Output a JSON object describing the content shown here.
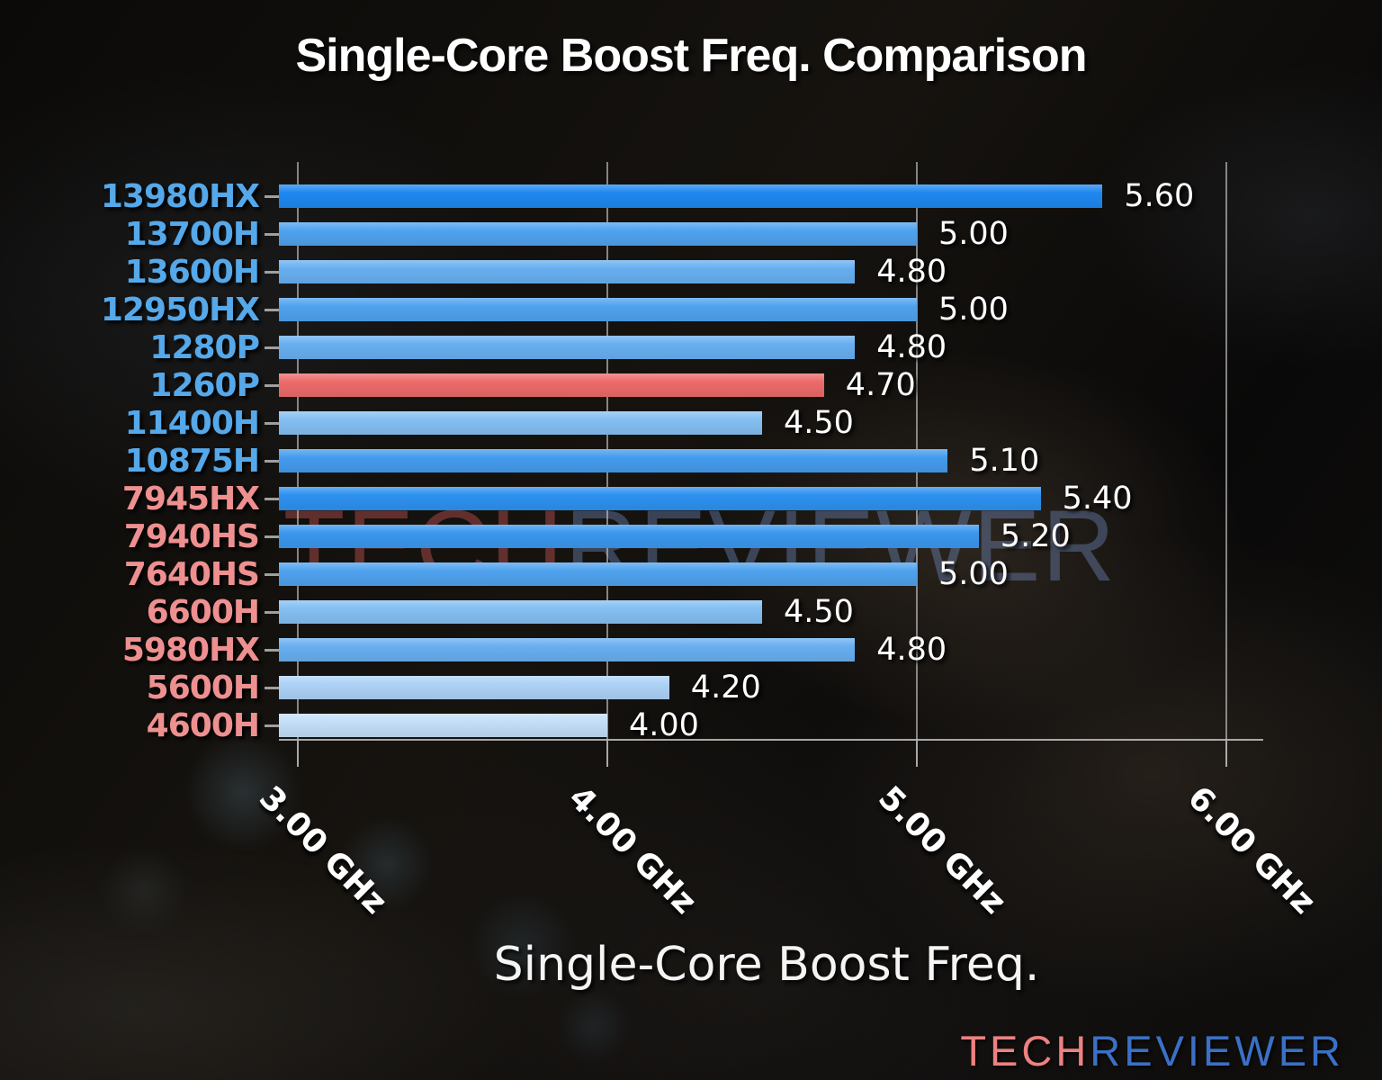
{
  "title": "Single-Core Boost Freq. Comparison",
  "watermark": {
    "tech": "TECH",
    "reviewer": "REVIEWER"
  },
  "logo": {
    "tech": "TECH",
    "reviewer": "REVIEWER"
  },
  "colors": {
    "intel_label": "#55a8e9",
    "amd_label": "#ee9090",
    "highlight_bar": "#ec6a6a",
    "logo_tech": "#ed8181",
    "logo_reviewer": "#3b70c6",
    "axis": "#c3c3c3",
    "value_text": "#ffffff"
  },
  "chart_data": {
    "type": "bar",
    "orientation": "horizontal",
    "title": "Single-Core Boost Freq. Comparison",
    "xlabel": "Single-Core Boost Freq.",
    "xlim": [
      2.94,
      6.11
    ],
    "grid": true,
    "legend": false,
    "x_ticks": [
      {
        "value": 3.0,
        "label": "3.00 GHz"
      },
      {
        "value": 4.0,
        "label": "4.00 GHz"
      },
      {
        "value": 5.0,
        "label": "5.00 GHz"
      },
      {
        "value": 6.0,
        "label": "6.00 GHz"
      }
    ],
    "bars": [
      {
        "category": "13980HX",
        "value": 5.6,
        "value_label": "5.60",
        "vendor": "intel",
        "highlight": false,
        "color": "#1e88f0"
      },
      {
        "category": "13700H",
        "value": 5.0,
        "value_label": "5.00",
        "vendor": "intel",
        "highlight": false,
        "color": "#4fa2ee"
      },
      {
        "category": "13600H",
        "value": 4.8,
        "value_label": "4.80",
        "vendor": "intel",
        "highlight": false,
        "color": "#68aff0"
      },
      {
        "category": "12950HX",
        "value": 5.0,
        "value_label": "5.00",
        "vendor": "intel",
        "highlight": false,
        "color": "#4fa2ee"
      },
      {
        "category": "1280P",
        "value": 4.8,
        "value_label": "4.80",
        "vendor": "intel",
        "highlight": false,
        "color": "#68aff0"
      },
      {
        "category": "1260P",
        "value": 4.7,
        "value_label": "4.70",
        "vendor": "intel",
        "highlight": true,
        "color": "#ec6a6a"
      },
      {
        "category": "11400H",
        "value": 4.5,
        "value_label": "4.50",
        "vendor": "intel",
        "highlight": false,
        "color": "#84bff2"
      },
      {
        "category": "10875H",
        "value": 5.1,
        "value_label": "5.10",
        "vendor": "intel",
        "highlight": false,
        "color": "#459bed"
      },
      {
        "category": "7945HX",
        "value": 5.4,
        "value_label": "5.40",
        "vendor": "amd",
        "highlight": false,
        "color": "#2d91ef"
      },
      {
        "category": "7940HS",
        "value": 5.2,
        "value_label": "5.20",
        "vendor": "amd",
        "highlight": false,
        "color": "#3b97ee"
      },
      {
        "category": "7640HS",
        "value": 5.0,
        "value_label": "5.00",
        "vendor": "amd",
        "highlight": false,
        "color": "#4fa2ee"
      },
      {
        "category": "6600H",
        "value": 4.5,
        "value_label": "4.50",
        "vendor": "amd",
        "highlight": false,
        "color": "#84bff2"
      },
      {
        "category": "5980HX",
        "value": 4.8,
        "value_label": "4.80",
        "vendor": "amd",
        "highlight": false,
        "color": "#68aff0"
      },
      {
        "category": "5600H",
        "value": 4.2,
        "value_label": "4.20",
        "vendor": "amd",
        "highlight": false,
        "color": "#add2f6"
      },
      {
        "category": "4600H",
        "value": 4.0,
        "value_label": "4.00",
        "vendor": "amd",
        "highlight": false,
        "color": "#c3def8"
      }
    ]
  }
}
